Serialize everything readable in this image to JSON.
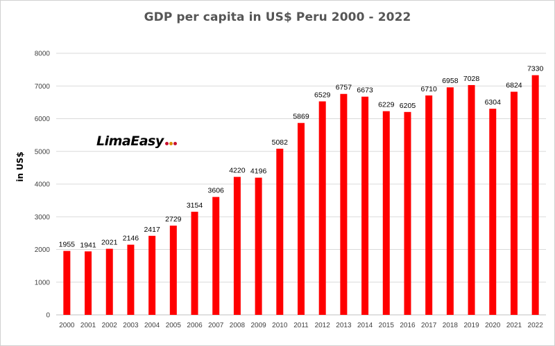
{
  "logo": {
    "text": "LimaEasy",
    "dot_colors": [
      "#c8102e",
      "#d98c00",
      "#c8102e"
    ]
  },
  "chart_data": {
    "type": "bar",
    "title": "GDP per capita in US$ Peru 2000 - 2022",
    "xlabel": "",
    "ylabel": "in US$",
    "ylim": [
      0,
      8000
    ],
    "yticks": [
      0,
      1000,
      2000,
      3000,
      4000,
      5000,
      6000,
      7000,
      8000
    ],
    "grid": true,
    "legend": "none",
    "bar_color": "#ff0000",
    "categories": [
      "2000",
      "2001",
      "2002",
      "2003",
      "2004",
      "2005",
      "2006",
      "2007",
      "2008",
      "2009",
      "2010",
      "2011",
      "2012",
      "2013",
      "2014",
      "2015",
      "2016",
      "2017",
      "2018",
      "2019",
      "2020",
      "2021",
      "2022"
    ],
    "values": [
      1955,
      1941,
      2021,
      2146,
      2417,
      2729,
      3154,
      3606,
      4220,
      4196,
      5082,
      5869,
      6529,
      6757,
      6673,
      6229,
      6205,
      6710,
      6958,
      7028,
      6304,
      6824,
      7330
    ]
  }
}
